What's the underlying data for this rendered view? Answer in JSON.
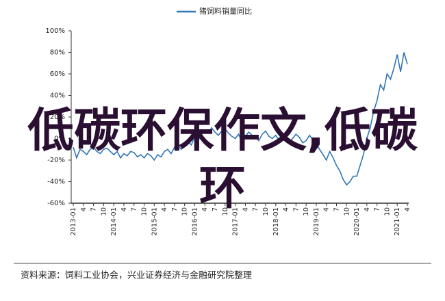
{
  "chart_data": {
    "type": "line",
    "categories": [
      "2013-01",
      null,
      null,
      "4",
      null,
      null,
      "7",
      null,
      null,
      "10",
      null,
      null,
      "2014-01",
      null,
      null,
      "4",
      null,
      null,
      "7",
      null,
      null,
      "10",
      null,
      null,
      "2015-01",
      null,
      null,
      "4",
      null,
      null,
      "7",
      null,
      null,
      "10",
      null,
      null,
      "2016-01",
      null,
      null,
      "4",
      null,
      null,
      "7",
      null,
      null,
      "10",
      null,
      null,
      "2017-01",
      null,
      null,
      "4",
      null,
      null,
      "7",
      null,
      null,
      "10",
      null,
      null,
      "2018-01",
      null,
      null,
      "4",
      null,
      null,
      "7",
      null,
      null,
      "10",
      null,
      null,
      "2019-01",
      null,
      null,
      "4",
      null,
      null,
      "7",
      null,
      null,
      "10",
      null,
      null,
      "2020-01",
      null,
      null,
      "4",
      null,
      null,
      "7",
      null,
      null,
      "10",
      null,
      null,
      "2021-01",
      null,
      null,
      "4"
    ],
    "series": [
      {
        "name": "猪饲料销量同比",
        "color": "#2e75b6",
        "values": [
          -8,
          -18,
          -10,
          -12,
          -15,
          -10,
          -8,
          -12,
          -14,
          -10,
          -9,
          -12,
          -15,
          -12,
          -18,
          -14,
          -16,
          -12,
          -13,
          -17,
          -15,
          -18,
          -14,
          -16,
          -20,
          -15,
          -17,
          -12,
          -10,
          -14,
          -8,
          -6,
          -10,
          -5,
          -3,
          -6,
          2,
          -2,
          4,
          8,
          5,
          10,
          6,
          3,
          7,
          9,
          5,
          2,
          0,
          4,
          -3,
          2,
          6,
          3,
          1,
          -2,
          4,
          7,
          2,
          0,
          3,
          -2,
          5,
          2,
          -3,
          0,
          4,
          1,
          -4,
          -2,
          3,
          -1,
          -5,
          -10,
          -15,
          -20,
          -12,
          -18,
          -25,
          -30,
          -38,
          -43,
          -40,
          -35,
          -35,
          -25,
          -15,
          0,
          10,
          25,
          35,
          50,
          45,
          60,
          55,
          65,
          78,
          62,
          80,
          69
        ]
      }
    ],
    "ylim": [
      -60,
      100
    ],
    "yticks": [
      {
        "value": -60,
        "label": "-60%"
      },
      {
        "value": -40,
        "label": "-40%"
      },
      {
        "value": -20,
        "label": "-20%"
      },
      {
        "value": 0,
        "label": "0%"
      },
      {
        "value": 20,
        "label": "20%"
      },
      {
        "value": 40,
        "label": "40%"
      },
      {
        "value": 60,
        "label": "60%"
      },
      {
        "value": 80,
        "label": "80%"
      },
      {
        "value": 100,
        "label": "100%"
      }
    ],
    "source": "资料来源：饲料工业协会，兴业证券经济与金融研究院整理"
  },
  "watermark": "低碳环保作文,低碳环"
}
